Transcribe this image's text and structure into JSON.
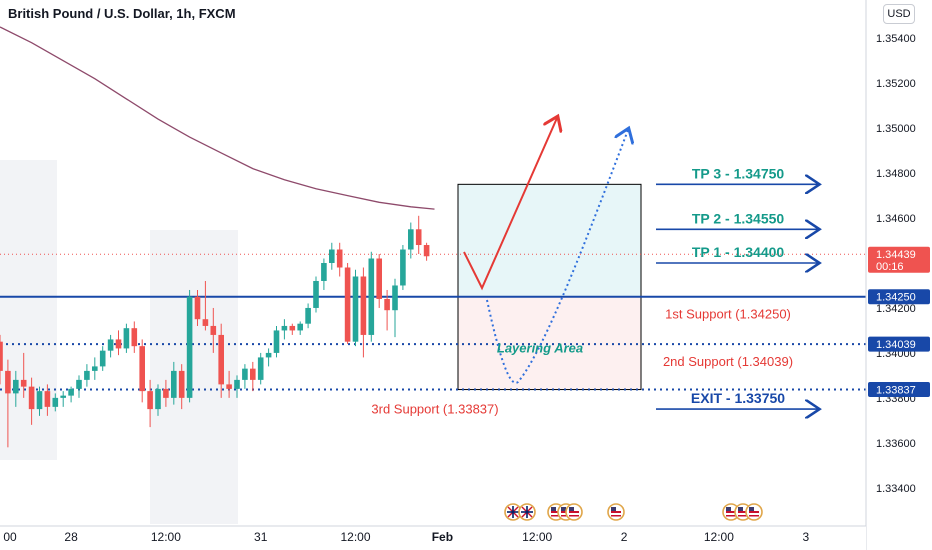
{
  "header": {
    "title": "British Pound / U.S. Dollar, 1h, FXCM",
    "currency": "USD"
  },
  "colors": {
    "up": "#26a69a",
    "down": "#ef5350",
    "ma": "#8e4a6b",
    "support": "#1848a8",
    "target_text": "#149a8a",
    "exit_text": "#1848a8",
    "support_text": "#e53935",
    "zone_top": "#e7f6f8",
    "zone_bottom": "#fdf0f0",
    "arrow_red": "#e53935",
    "arrow_blue": "#2f6fdc"
  },
  "chart_data": {
    "type": "candlestick",
    "y_range": [
      1.3323,
      1.3557
    ],
    "y_ticks": [
      "1.35400",
      "1.35200",
      "1.35000",
      "1.34800",
      "1.34600",
      "1.34400",
      "1.34200",
      "1.34000",
      "1.33800",
      "1.33600",
      "1.33400"
    ],
    "y_tick_values": [
      1.354,
      1.352,
      1.35,
      1.348,
      1.346,
      1.344,
      1.342,
      1.34,
      1.338,
      1.336,
      1.334
    ],
    "x_labels": [
      {
        "label": "00",
        "i": 0
      },
      {
        "label": "28",
        "i": 9
      },
      {
        "label": "12:00",
        "i": 21
      },
      {
        "label": "31",
        "i": 33
      },
      {
        "label": "12:00",
        "i": 45
      },
      {
        "label": "Feb",
        "i": 56
      },
      {
        "label": "12:00",
        "i": 68
      },
      {
        "label": "2",
        "i": 79
      },
      {
        "label": "12:00",
        "i": 91
      },
      {
        "label": "3",
        "i": 102
      }
    ],
    "candles": [
      [
        1.3405,
        1.3408,
        1.3386,
        1.3392
      ],
      [
        1.3392,
        1.3397,
        1.3358,
        1.3382
      ],
      [
        1.3382,
        1.3392,
        1.3376,
        1.3388
      ],
      [
        1.3388,
        1.34,
        1.338,
        1.3385
      ],
      [
        1.3385,
        1.3389,
        1.3368,
        1.3375
      ],
      [
        1.3375,
        1.3385,
        1.3372,
        1.3383
      ],
      [
        1.3383,
        1.3386,
        1.3372,
        1.3376
      ],
      [
        1.3376,
        1.3382,
        1.3374,
        1.338
      ],
      [
        1.338,
        1.3383,
        1.3376,
        1.3381
      ],
      [
        1.3381,
        1.3385,
        1.3378,
        1.3384
      ],
      [
        1.3384,
        1.339,
        1.338,
        1.3388
      ],
      [
        1.3388,
        1.3395,
        1.3385,
        1.3392
      ],
      [
        1.3392,
        1.3398,
        1.3388,
        1.3394
      ],
      [
        1.3394,
        1.3403,
        1.3392,
        1.3401
      ],
      [
        1.3401,
        1.3408,
        1.3398,
        1.3406
      ],
      [
        1.3406,
        1.341,
        1.3399,
        1.3402
      ],
      [
        1.3402,
        1.3413,
        1.34,
        1.3411
      ],
      [
        1.3411,
        1.3414,
        1.34,
        1.3403
      ],
      [
        1.3403,
        1.3406,
        1.3378,
        1.3383
      ],
      [
        1.3383,
        1.3388,
        1.3367,
        1.3375
      ],
      [
        1.3375,
        1.3386,
        1.3372,
        1.3384
      ],
      [
        1.3384,
        1.3388,
        1.3376,
        1.338
      ],
      [
        1.338,
        1.3396,
        1.3377,
        1.3392
      ],
      [
        1.3392,
        1.3395,
        1.3375,
        1.338
      ],
      [
        1.338,
        1.3428,
        1.3378,
        1.3425
      ],
      [
        1.3425,
        1.3428,
        1.3412,
        1.3415
      ],
      [
        1.3415,
        1.3432,
        1.341,
        1.3412
      ],
      [
        1.3412,
        1.342,
        1.34,
        1.3408
      ],
      [
        1.3408,
        1.3413,
        1.338,
        1.3386
      ],
      [
        1.3386,
        1.3392,
        1.338,
        1.3384
      ],
      [
        1.3384,
        1.339,
        1.338,
        1.3388
      ],
      [
        1.3388,
        1.3395,
        1.3384,
        1.3393
      ],
      [
        1.3393,
        1.3396,
        1.3383,
        1.3388
      ],
      [
        1.3388,
        1.34,
        1.3386,
        1.3398
      ],
      [
        1.3398,
        1.3402,
        1.3394,
        1.34
      ],
      [
        1.34,
        1.3412,
        1.3398,
        1.341
      ],
      [
        1.341,
        1.3415,
        1.3406,
        1.3412
      ],
      [
        1.3412,
        1.3413,
        1.3408,
        1.341
      ],
      [
        1.341,
        1.3414,
        1.3408,
        1.3413
      ],
      [
        1.3413,
        1.3422,
        1.3411,
        1.342
      ],
      [
        1.342,
        1.3434,
        1.3418,
        1.3432
      ],
      [
        1.3432,
        1.3442,
        1.3428,
        1.344
      ],
      [
        1.344,
        1.3449,
        1.3437,
        1.3446
      ],
      [
        1.3446,
        1.3449,
        1.3434,
        1.3438
      ],
      [
        1.3438,
        1.344,
        1.3404,
        1.3405
      ],
      [
        1.3405,
        1.3437,
        1.3403,
        1.3434
      ],
      [
        1.3434,
        1.3438,
        1.3398,
        1.3408
      ],
      [
        1.3408,
        1.3445,
        1.3405,
        1.3442
      ],
      [
        1.3442,
        1.3444,
        1.342,
        1.3424
      ],
      [
        1.3424,
        1.3428,
        1.341,
        1.3419
      ],
      [
        1.3419,
        1.3433,
        1.3407,
        1.343
      ],
      [
        1.343,
        1.3448,
        1.3428,
        1.3446
      ],
      [
        1.3446,
        1.3458,
        1.3442,
        1.3455
      ],
      [
        1.3455,
        1.3461,
        1.3444,
        1.3448
      ],
      [
        1.3448,
        1.3449,
        1.3441,
        1.3443
      ]
    ],
    "ma": [
      [
        0,
        1.3545
      ],
      [
        4,
        1.3538
      ],
      [
        8,
        1.353
      ],
      [
        12,
        1.3522
      ],
      [
        16,
        1.3513
      ],
      [
        20,
        1.3504
      ],
      [
        24,
        1.3496
      ],
      [
        28,
        1.3489
      ],
      [
        32,
        1.3482
      ],
      [
        36,
        1.3477
      ],
      [
        40,
        1.3473
      ],
      [
        44,
        1.347
      ],
      [
        48,
        1.3467
      ],
      [
        52,
        1.3465
      ],
      [
        55,
        1.3464
      ]
    ]
  },
  "levels": {
    "support1": {
      "value": 1.3425,
      "label": "1.34250",
      "text": "1st Support (1.34250)"
    },
    "support2": {
      "value": 1.34039,
      "label": "1.34039",
      "text": "2nd Support (1.34039)"
    },
    "support3": {
      "value": 1.33837,
      "label": "1.33837",
      "text": "3rd Support (1.33837)"
    },
    "current": {
      "value": 1.34439,
      "label": "1.34439",
      "countdown": "00:16"
    }
  },
  "zone": {
    "top": 1.3475,
    "mid": 1.3425,
    "bottom": 1.33837,
    "label": "Layering Area"
  },
  "targets": [
    {
      "text": "TP 3 - 1.34750",
      "value": 1.3475
    },
    {
      "text": "TP 2 - 1.34550",
      "value": 1.3455
    },
    {
      "text": "TP 1 - 1.34400",
      "value": 1.344
    }
  ],
  "exit": {
    "text": "EXIT - 1.33750",
    "value": 1.3375
  },
  "events": [
    "GB",
    "GB",
    "US",
    "US",
    "US",
    "US",
    "US",
    "US",
    "US"
  ]
}
